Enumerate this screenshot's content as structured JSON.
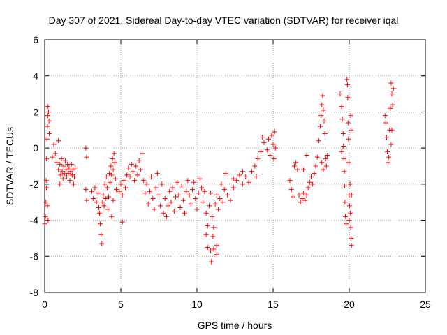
{
  "chart_data": {
    "type": "scatter",
    "title": "Day 307 of 2021, Sidereal Day-to-day VTEC variation (SDTVAR) for receiver iqal",
    "xlabel": "GPS time / hours",
    "ylabel": "SDTVAR / TECUs",
    "xlim": [
      0,
      25
    ],
    "ylim": [
      -8,
      6
    ],
    "x_ticks": [
      0,
      5,
      10,
      15,
      20,
      25
    ],
    "y_ticks": [
      -8,
      -6,
      -4,
      -2,
      0,
      2,
      4,
      6
    ],
    "grid": true,
    "marker": "plus",
    "series_color": "#ff0000",
    "series": [
      {
        "name": "SDTVAR",
        "points": [
          [
            0.0,
            -4.2
          ],
          [
            0.05,
            -3.8
          ],
          [
            0.08,
            -3.0
          ],
          [
            0.1,
            -1.8
          ],
          [
            0.12,
            -0.6
          ],
          [
            0.15,
            0.5
          ],
          [
            0.18,
            1.2
          ],
          [
            0.2,
            1.8
          ],
          [
            0.22,
            2.3
          ],
          [
            0.25,
            2.0
          ],
          [
            0.28,
            1.5
          ],
          [
            0.3,
            0.8
          ],
          [
            0.12,
            -2.2
          ],
          [
            0.18,
            -3.2
          ],
          [
            0.22,
            -4.0
          ],
          [
            0.5,
            -0.5
          ],
          [
            0.6,
            0.2
          ],
          [
            0.7,
            -0.3
          ],
          [
            0.8,
            -0.8
          ],
          [
            0.9,
            -1.2
          ],
          [
            1.0,
            -0.9
          ],
          [
            1.05,
            -1.5
          ],
          [
            1.1,
            -0.6
          ],
          [
            1.15,
            -1.3
          ],
          [
            1.2,
            -1.7
          ],
          [
            1.25,
            -1.0
          ],
          [
            1.3,
            -1.4
          ],
          [
            1.35,
            -0.7
          ],
          [
            1.4,
            -1.2
          ],
          [
            1.45,
            -1.6
          ],
          [
            1.5,
            -0.9
          ],
          [
            1.55,
            -1.4
          ],
          [
            1.6,
            -1.1
          ],
          [
            1.65,
            -1.8
          ],
          [
            1.7,
            -1.3
          ],
          [
            1.75,
            -0.9
          ],
          [
            1.8,
            -1.5
          ],
          [
            1.85,
            -1.2
          ],
          [
            1.9,
            -2.0
          ],
          [
            1.95,
            -1.6
          ],
          [
            2.0,
            -1.1
          ],
          [
            1.0,
            -2.0
          ],
          [
            0.9,
            0.4
          ],
          [
            2.7,
            0.0
          ],
          [
            2.75,
            -0.5
          ],
          [
            2.7,
            -2.3
          ],
          [
            2.75,
            -2.9
          ],
          [
            3.1,
            -2.4
          ],
          [
            3.2,
            -2.8
          ],
          [
            3.3,
            -2.2
          ],
          [
            3.4,
            -3.0
          ],
          [
            3.5,
            -2.5
          ],
          [
            3.55,
            -3.3
          ],
          [
            3.6,
            -3.6
          ],
          [
            3.65,
            -4.2
          ],
          [
            3.7,
            -4.8
          ],
          [
            3.75,
            -5.3
          ],
          [
            3.8,
            -3.0
          ],
          [
            3.85,
            -2.6
          ],
          [
            3.9,
            -3.2
          ],
          [
            3.95,
            -2.0
          ],
          [
            4.0,
            -2.8
          ],
          [
            4.05,
            -1.6
          ],
          [
            4.1,
            -2.2
          ],
          [
            4.15,
            -3.4
          ],
          [
            4.2,
            -2.7
          ],
          [
            4.25,
            -1.4
          ],
          [
            4.3,
            -1.9
          ],
          [
            4.35,
            -1.0
          ],
          [
            4.4,
            -1.5
          ],
          [
            4.45,
            -0.6
          ],
          [
            4.5,
            -1.2
          ],
          [
            4.55,
            -0.3
          ],
          [
            4.6,
            -0.8
          ],
          [
            4.65,
            -1.7
          ],
          [
            4.7,
            -2.3
          ],
          [
            4.4,
            -3.8
          ],
          [
            4.5,
            -2.9
          ],
          [
            4.9,
            -2.4
          ],
          [
            5.0,
            -2.0
          ],
          [
            5.1,
            -2.6
          ],
          [
            5.2,
            -1.8
          ],
          [
            5.1,
            -4.1
          ],
          [
            5.3,
            -2.2
          ],
          [
            5.4,
            -1.5
          ],
          [
            5.5,
            -1.1
          ],
          [
            5.6,
            -1.6
          ],
          [
            5.7,
            -0.9
          ],
          [
            5.8,
            -1.3
          ],
          [
            5.9,
            -1.8
          ],
          [
            6.0,
            -1.0
          ],
          [
            6.1,
            -1.5
          ],
          [
            6.2,
            -0.7
          ],
          [
            6.3,
            -1.2
          ],
          [
            6.4,
            -0.3
          ],
          [
            6.5,
            -1.8
          ],
          [
            6.6,
            -2.5
          ],
          [
            6.7,
            -2.0
          ],
          [
            6.8,
            -3.1
          ],
          [
            6.9,
            -2.4
          ],
          [
            7.0,
            -1.6
          ],
          [
            7.1,
            -2.8
          ],
          [
            7.2,
            -3.4
          ],
          [
            7.3,
            -2.2
          ],
          [
            7.4,
            -1.4
          ],
          [
            7.5,
            -2.6
          ],
          [
            7.6,
            -3.2
          ],
          [
            7.7,
            -2.0
          ],
          [
            7.8,
            -3.6
          ],
          [
            7.9,
            -2.8
          ],
          [
            8.0,
            -3.8
          ],
          [
            8.1,
            -3.2
          ],
          [
            8.2,
            -2.4
          ],
          [
            8.3,
            -3.0
          ],
          [
            8.4,
            -2.2
          ],
          [
            8.5,
            -3.5
          ],
          [
            8.6,
            -2.7
          ],
          [
            8.7,
            -1.9
          ],
          [
            8.8,
            -2.6
          ],
          [
            8.9,
            -3.3
          ],
          [
            9.0,
            -2.1
          ],
          [
            9.1,
            -2.9
          ],
          [
            9.2,
            -3.6
          ],
          [
            9.3,
            -2.4
          ],
          [
            9.4,
            -1.8
          ],
          [
            9.5,
            -2.6
          ],
          [
            9.6,
            -3.1
          ],
          [
            9.7,
            -2.3
          ],
          [
            9.8,
            -1.9
          ],
          [
            9.9,
            -2.8
          ],
          [
            10.0,
            -3.4
          ],
          [
            10.1,
            -2.5
          ],
          [
            10.2,
            -1.7
          ],
          [
            10.3,
            -2.2
          ],
          [
            10.4,
            -3.0
          ],
          [
            10.5,
            -2.4
          ],
          [
            10.6,
            -3.6
          ],
          [
            10.7,
            -4.3
          ],
          [
            10.8,
            -3.2
          ],
          [
            10.9,
            -2.5
          ],
          [
            11.0,
            -3.8
          ],
          [
            11.1,
            -4.4
          ],
          [
            11.2,
            -3.1
          ],
          [
            11.3,
            -2.6
          ],
          [
            11.4,
            -3.4
          ],
          [
            11.5,
            -2.8
          ],
          [
            11.6,
            -2.0
          ],
          [
            11.7,
            -3.0
          ],
          [
            11.8,
            -2.3
          ],
          [
            11.9,
            -1.4
          ],
          [
            10.6,
            -4.8
          ],
          [
            10.7,
            -5.5
          ],
          [
            10.9,
            -5.7
          ],
          [
            10.95,
            -6.3
          ],
          [
            11.05,
            -4.9
          ],
          [
            11.1,
            -5.6
          ],
          [
            11.3,
            -5.4
          ],
          [
            11.3,
            -5.9
          ],
          [
            12.0,
            -2.6
          ],
          [
            12.2,
            -2.9
          ],
          [
            12.4,
            -2.2
          ],
          [
            12.6,
            -1.8
          ],
          [
            12.8,
            -1.5
          ],
          [
            13.0,
            -2.0
          ],
          [
            13.2,
            -1.6
          ],
          [
            13.4,
            -1.9
          ],
          [
            13.6,
            -1.3
          ],
          [
            13.8,
            -1.0
          ],
          [
            14.0,
            -0.6
          ],
          [
            14.2,
            -0.2
          ],
          [
            14.4,
            0.3
          ],
          [
            14.6,
            -0.1
          ],
          [
            14.7,
            0.5
          ],
          [
            14.8,
            -0.4
          ],
          [
            14.9,
            0.7
          ],
          [
            15.0,
            0.2
          ],
          [
            15.1,
            0.9
          ],
          [
            15.15,
            0.0
          ],
          [
            13.0,
            -1.3
          ],
          [
            12.4,
            -1.7
          ],
          [
            13.9,
            -1.6
          ],
          [
            14.3,
            0.6
          ],
          [
            15.05,
            -0.6
          ],
          [
            16.1,
            -1.8
          ],
          [
            16.2,
            -2.3
          ],
          [
            16.3,
            -2.7
          ],
          [
            16.4,
            -1.0
          ],
          [
            16.5,
            -0.8
          ],
          [
            16.6,
            -1.2
          ],
          [
            16.7,
            -2.6
          ],
          [
            16.8,
            -3.0
          ],
          [
            16.9,
            -2.8
          ],
          [
            17.0,
            -2.5
          ],
          [
            17.1,
            -2.9
          ],
          [
            17.2,
            -2.6
          ],
          [
            17.3,
            -2.2
          ],
          [
            17.4,
            -1.9
          ],
          [
            17.5,
            -1.6
          ],
          [
            17.6,
            -2.0
          ],
          [
            17.7,
            -1.4
          ],
          [
            17.8,
            -1.0
          ],
          [
            17.9,
            -0.5
          ],
          [
            18.0,
            0.4
          ],
          [
            18.1,
            1.2
          ],
          [
            18.15,
            1.8
          ],
          [
            18.2,
            2.4
          ],
          [
            18.25,
            2.9
          ],
          [
            18.3,
            2.1
          ],
          [
            18.35,
            1.5
          ],
          [
            18.4,
            0.8
          ],
          [
            18.45,
            -0.6
          ],
          [
            18.5,
            -1.0
          ],
          [
            18.55,
            -0.4
          ],
          [
            18.3,
            -1.2
          ],
          [
            18.2,
            -0.8
          ],
          [
            17.2,
            -0.4
          ],
          [
            17.0,
            -1.2
          ],
          [
            19.4,
            3.0
          ],
          [
            19.5,
            2.3
          ],
          [
            19.55,
            1.6
          ],
          [
            19.6,
            0.8
          ],
          [
            19.62,
            0.1
          ],
          [
            19.65,
            -0.6
          ],
          [
            19.68,
            -1.3
          ],
          [
            19.7,
            -2.1
          ],
          [
            19.72,
            -3.0
          ],
          [
            19.75,
            -3.8
          ],
          [
            19.8,
            -4.2
          ],
          [
            19.85,
            3.8
          ],
          [
            19.88,
            3.5
          ],
          [
            19.9,
            2.8
          ],
          [
            19.92,
            1.4
          ],
          [
            19.95,
            0.5
          ],
          [
            19.98,
            -0.8
          ],
          [
            20.0,
            -2.6
          ],
          [
            20.02,
            -3.2
          ],
          [
            20.05,
            -2.0
          ],
          [
            20.08,
            -3.6
          ],
          [
            20.1,
            -4.4
          ],
          [
            20.12,
            -5.0
          ],
          [
            20.15,
            -5.4
          ],
          [
            20.0,
            -4.0
          ],
          [
            19.5,
            -0.2
          ],
          [
            20.1,
            1.8
          ],
          [
            20.12,
            1.0
          ],
          [
            20.15,
            -2.6
          ],
          [
            22.35,
            1.8
          ],
          [
            22.4,
            1.4
          ],
          [
            22.45,
            0.6
          ],
          [
            22.5,
            -0.2
          ],
          [
            22.55,
            -0.8
          ],
          [
            22.6,
            -0.5
          ],
          [
            22.65,
            1.0
          ],
          [
            22.7,
            2.2
          ],
          [
            22.75,
            3.6
          ],
          [
            22.8,
            3.0
          ],
          [
            22.85,
            2.4
          ],
          [
            22.9,
            3.3
          ],
          [
            22.75,
            0.2
          ],
          [
            22.8,
            1.0
          ]
        ]
      }
    ]
  }
}
